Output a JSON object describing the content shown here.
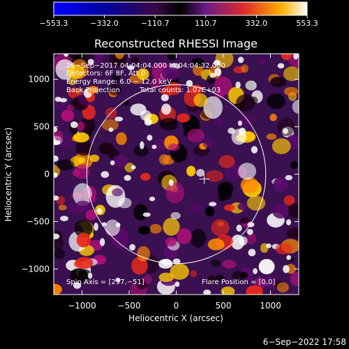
{
  "chart_data": {
    "type": "heatmap",
    "title": "Reconstructed RHESSI Image",
    "xlabel": "Heliocentric X (arcsec)",
    "ylabel": "Heliocentric Y (arcsec)",
    "xlim": [
      -1300,
      1300
    ],
    "ylim": [
      -1270,
      1270
    ],
    "xticks": [
      -1000,
      -500,
      0,
      500,
      1000
    ],
    "xtick_labels": [
      "−1000",
      "−500",
      "0",
      "500",
      "1000"
    ],
    "yticks": [
      -1000,
      -500,
      0,
      500,
      1000
    ],
    "yticks_labels": [
      "−1000",
      "−500",
      "0",
      "500",
      "1000"
    ],
    "colorbar": {
      "range": [
        -553.3,
        553.3
      ],
      "ticks": [
        -553.3,
        -332.0,
        -110.7,
        110.7,
        332.0,
        553.3
      ],
      "tick_labels": [
        "−553.3",
        "−332.0",
        "−110.7",
        "110.7",
        "332.0",
        "553.3"
      ]
    },
    "annotations": {
      "time": "26−Sep−2017 04:04:04.000 to 04:04:32.000",
      "detectors": "Detectors: 6F 8F, Att 0",
      "energy": "Energy Range: 6.0 − 12.0 keV",
      "method": "Back Projection",
      "counts": "Total counts: 1.07E+03",
      "spin_axis": "Spin Axis = [297,−51]",
      "flare_position": "Flare Position = [0,0]"
    },
    "solar_limb_radius": 950,
    "map_center_marker": [
      297,
      -51
    ]
  },
  "footer_date": "6−Sep−2022 17:58"
}
